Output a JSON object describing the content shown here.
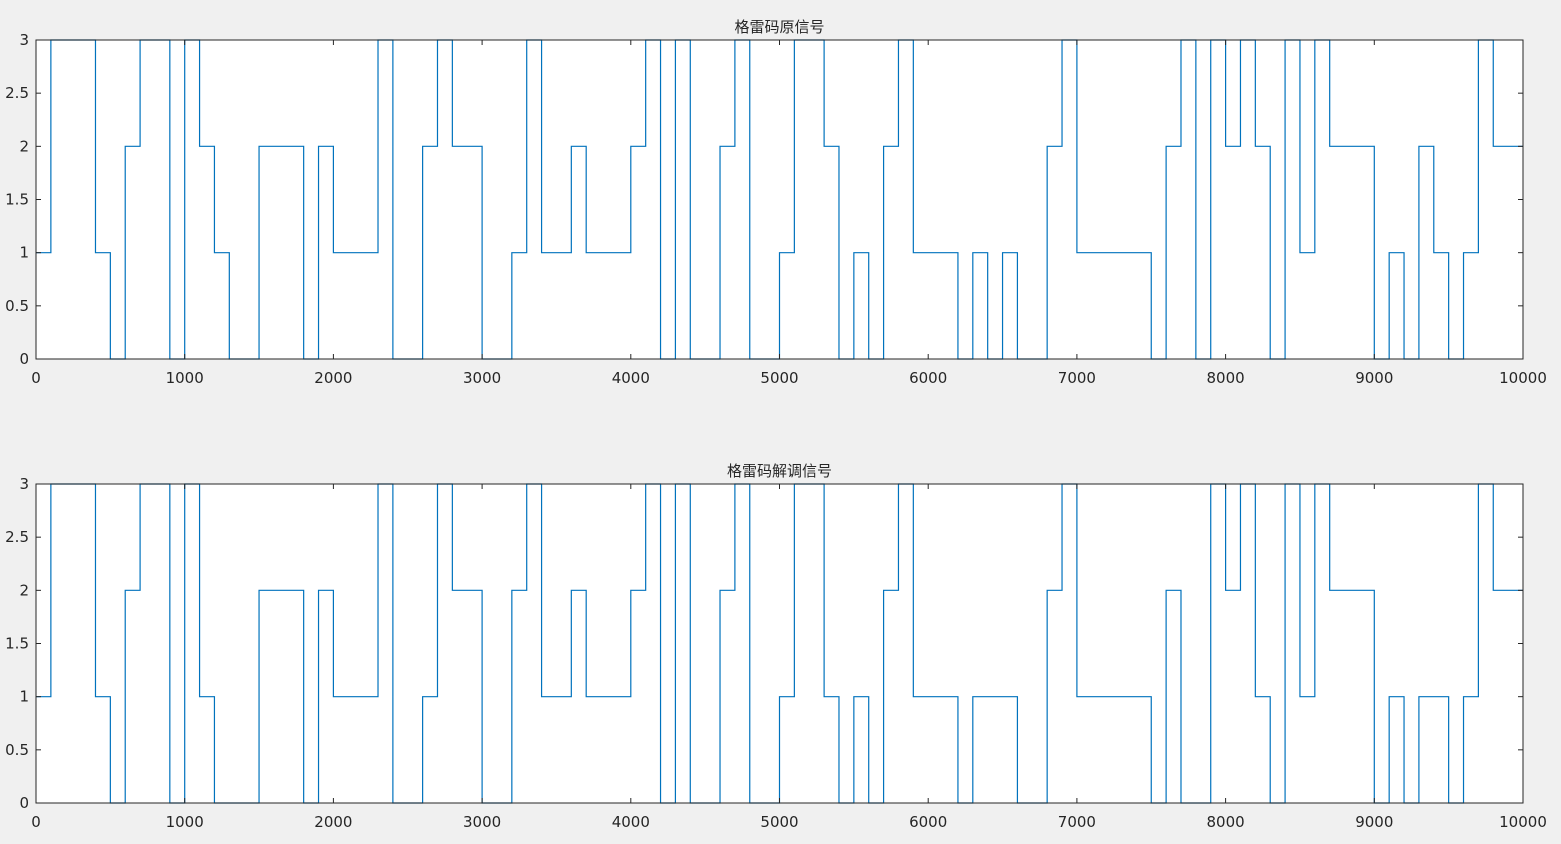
{
  "chart_data": [
    {
      "type": "line",
      "title": "格雷码原信号",
      "xlabel": "",
      "ylabel": "",
      "xlim": [
        0,
        10000
      ],
      "ylim": [
        0,
        3
      ],
      "xticks": [
        0,
        1000,
        2000,
        3000,
        4000,
        5000,
        6000,
        7000,
        8000,
        9000,
        10000
      ],
      "yticks": [
        0,
        0.5,
        1,
        1.5,
        2,
        2.5,
        3
      ],
      "xtick_labels": [
        "0",
        "1000",
        "2000",
        "3000",
        "4000",
        "5000",
        "6000",
        "7000",
        "8000",
        "9000",
        "10000"
      ],
      "ytick_labels": [
        "0",
        "0.5",
        "1",
        "1.5",
        "2",
        "2.5",
        "3"
      ],
      "grid": false,
      "color": "#0072bd",
      "step": 100,
      "values": [
        1,
        3,
        3,
        3,
        1,
        0,
        2,
        3,
        3,
        0,
        3,
        2,
        1,
        0,
        0,
        2,
        2,
        2,
        0,
        2,
        1,
        1,
        1,
        3,
        0,
        0,
        2,
        3,
        2,
        2,
        0,
        0,
        1,
        3,
        1,
        1,
        2,
        1,
        1,
        1,
        2,
        3,
        0,
        3,
        0,
        0,
        2,
        3,
        0,
        0,
        1,
        3,
        3,
        2,
        0,
        1,
        0,
        2,
        3,
        1,
        1,
        1,
        0,
        1,
        0,
        1,
        0,
        0,
        2,
        3,
        1,
        1,
        1,
        1,
        1,
        0,
        2,
        3,
        0,
        3,
        2,
        3,
        2,
        0,
        3,
        1,
        3,
        2,
        2,
        2,
        0,
        1,
        0,
        2,
        1,
        0,
        1,
        3,
        2,
        2
      ]
    },
    {
      "type": "line",
      "title": "格雷码解调信号",
      "xlabel": "",
      "ylabel": "",
      "xlim": [
        0,
        10000
      ],
      "ylim": [
        0,
        3
      ],
      "xticks": [
        0,
        1000,
        2000,
        3000,
        4000,
        5000,
        6000,
        7000,
        8000,
        9000,
        10000
      ],
      "yticks": [
        0,
        0.5,
        1,
        1.5,
        2,
        2.5,
        3
      ],
      "xtick_labels": [
        "0",
        "1000",
        "2000",
        "3000",
        "4000",
        "5000",
        "6000",
        "7000",
        "8000",
        "9000",
        "10000"
      ],
      "ytick_labels": [
        "0",
        "0.5",
        "1",
        "1.5",
        "2",
        "2.5",
        "3"
      ],
      "grid": false,
      "color": "#0072bd",
      "step": 100,
      "values": [
        1,
        3,
        3,
        3,
        1,
        0,
        2,
        3,
        3,
        0,
        3,
        1,
        0,
        0,
        0,
        2,
        2,
        2,
        0,
        2,
        1,
        1,
        1,
        3,
        0,
        0,
        1,
        3,
        2,
        2,
        0,
        0,
        2,
        3,
        1,
        1,
        2,
        1,
        1,
        1,
        2,
        3,
        0,
        3,
        0,
        0,
        2,
        3,
        0,
        0,
        1,
        3,
        3,
        1,
        0,
        1,
        0,
        2,
        3,
        1,
        1,
        1,
        0,
        1,
        1,
        1,
        0,
        0,
        2,
        3,
        1,
        1,
        1,
        1,
        1,
        0,
        2,
        0,
        0,
        3,
        2,
        3,
        1,
        0,
        3,
        1,
        3,
        2,
        2,
        2,
        0,
        1,
        0,
        1,
        1,
        0,
        1,
        3,
        2,
        2
      ]
    }
  ]
}
